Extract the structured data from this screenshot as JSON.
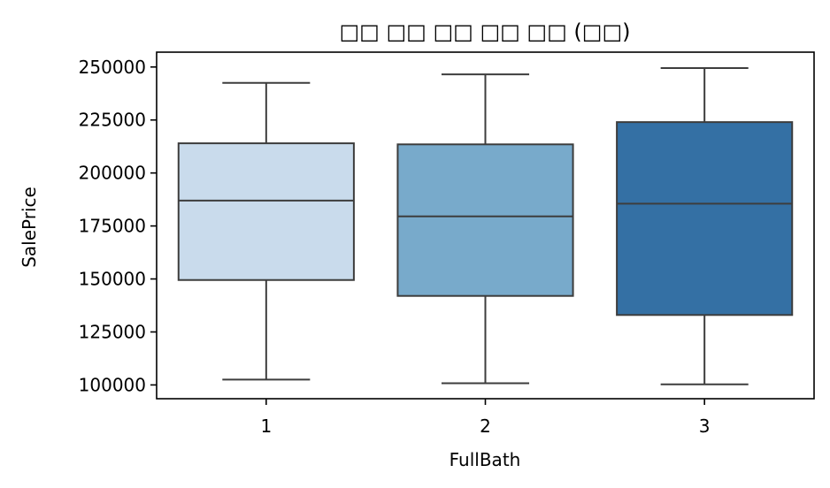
{
  "chart_data": {
    "type": "box",
    "title": "□□ □□ □□ □□ □□ (□□)",
    "xlabel": "FullBath",
    "ylabel": "SalePrice",
    "categories": [
      "1",
      "2",
      "3"
    ],
    "boxes": [
      {
        "category": "1",
        "whislo": 102500,
        "q1": 149500,
        "med": 187000,
        "q3": 214000,
        "whishi": 242500,
        "color": "#c9dbec"
      },
      {
        "category": "2",
        "whislo": 100800,
        "q1": 142000,
        "med": 179500,
        "q3": 213500,
        "whishi": 246500,
        "color": "#78aacb"
      },
      {
        "category": "3",
        "whislo": 100300,
        "q1": 133000,
        "med": 185500,
        "q3": 224000,
        "whishi": 249500,
        "color": "#3470a4"
      }
    ],
    "yticks": [
      100000,
      125000,
      150000,
      175000,
      200000,
      225000,
      250000
    ],
    "ylim": [
      93500,
      257000
    ],
    "grid": false,
    "legend": false,
    "line_color": "#3d3d3d"
  }
}
